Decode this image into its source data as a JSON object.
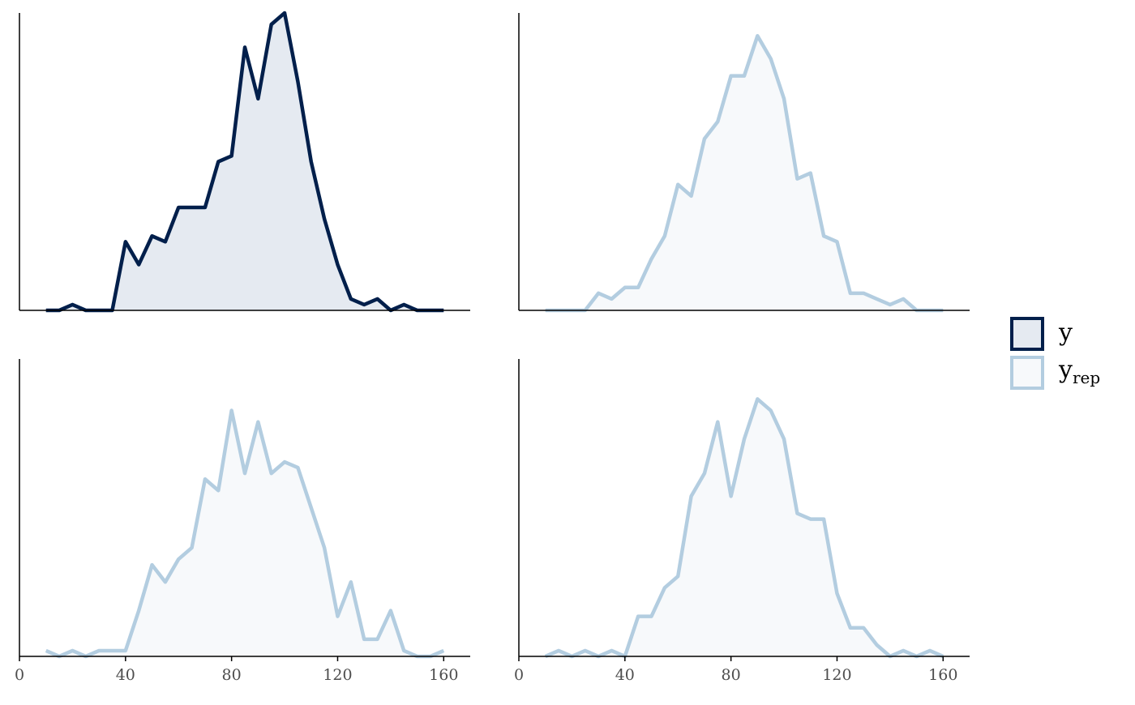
{
  "chart_data": [
    {
      "type": "line",
      "x": [
        10,
        15,
        20,
        25,
        30,
        35,
        40,
        45,
        50,
        55,
        60,
        65,
        70,
        75,
        80,
        85,
        90,
        95,
        100,
        105,
        110,
        115,
        120,
        125,
        130,
        135,
        140,
        145,
        150,
        155,
        160
      ],
      "series": [
        {
          "name": "y",
          "color": "#011f4b",
          "fill": "#e5eaf1",
          "values": [
            0,
            0,
            1,
            0,
            0,
            0,
            12,
            8,
            13,
            12,
            18,
            18,
            18,
            26,
            27,
            46,
            37,
            50,
            52,
            40,
            26,
            16,
            8,
            2,
            1,
            2,
            0,
            1,
            0,
            0,
            0
          ]
        }
      ],
      "xlim": [
        0,
        170
      ],
      "ylim": [
        0,
        52
      ]
    },
    {
      "type": "line",
      "x": [
        10,
        15,
        20,
        25,
        30,
        35,
        40,
        45,
        50,
        55,
        60,
        65,
        70,
        75,
        80,
        85,
        90,
        95,
        100,
        105,
        110,
        115,
        120,
        125,
        130,
        135,
        140,
        145,
        150,
        155,
        160
      ],
      "series": [
        {
          "name": "y",
          "name_subscript": "rep",
          "color": "#b3cde0",
          "fill": "#f7f9fb",
          "values": [
            0,
            0,
            0,
            0,
            3,
            2,
            4,
            4,
            9,
            13,
            22,
            20,
            30,
            33,
            41,
            41,
            48,
            44,
            37,
            23,
            24,
            13,
            12,
            3,
            3,
            2,
            1,
            2,
            0,
            0,
            0
          ]
        }
      ],
      "xlim": [
        0,
        170
      ],
      "ylim": [
        0,
        52
      ]
    },
    {
      "type": "line",
      "x": [
        10,
        15,
        20,
        25,
        30,
        35,
        40,
        45,
        50,
        55,
        60,
        65,
        70,
        75,
        80,
        85,
        90,
        95,
        100,
        105,
        110,
        115,
        120,
        125,
        130,
        135,
        140,
        145,
        150,
        155,
        160
      ],
      "series": [
        {
          "color": "#b3cde0",
          "fill": "#f7f9fb",
          "values": [
            1,
            0,
            1,
            0,
            1,
            1,
            1,
            8,
            16,
            13,
            17,
            19,
            31,
            29,
            43,
            32,
            41,
            32,
            34,
            33,
            26,
            19,
            7,
            13,
            3,
            3,
            8,
            1,
            0,
            0,
            1
          ]
        }
      ],
      "xlim": [
        0,
        170
      ],
      "ylim": [
        0,
        52
      ],
      "xticks": [
        0,
        40,
        80,
        120,
        160
      ]
    },
    {
      "type": "line",
      "x": [
        10,
        15,
        20,
        25,
        30,
        35,
        40,
        45,
        50,
        55,
        60,
        65,
        70,
        75,
        80,
        85,
        90,
        95,
        100,
        105,
        110,
        115,
        120,
        125,
        130,
        135,
        140,
        145,
        150,
        155,
        160
      ],
      "series": [
        {
          "color": "#b3cde0",
          "fill": "#f7f9fb",
          "values": [
            0,
            1,
            0,
            1,
            0,
            1,
            0,
            7,
            7,
            12,
            14,
            28,
            32,
            41,
            28,
            38,
            45,
            43,
            38,
            25,
            24,
            24,
            11,
            5,
            5,
            2,
            0,
            1,
            0,
            1,
            0
          ]
        }
      ],
      "xlim": [
        0,
        170
      ],
      "ylim": [
        0,
        52
      ],
      "xticks": [
        0,
        40,
        80,
        120,
        160
      ]
    }
  ]
}
